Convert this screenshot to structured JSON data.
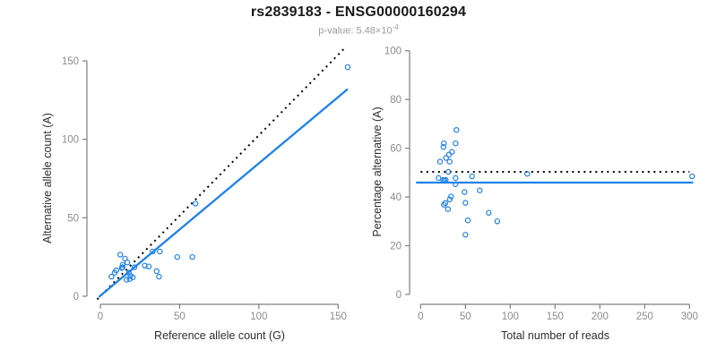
{
  "title": "rs2839183 - ENSG00000160294",
  "subtitle": {
    "text": "p-value: 5.48×10",
    "exponent": "-4"
  },
  "colors": {
    "point_blue": "#1e82e8",
    "line_blue": "#1e82e8",
    "dotted_black": "#000000",
    "tick_text": "#8c8c8c",
    "axis_line": "#7f7f7f",
    "label_text": "#2e2e2e",
    "title_text": "#1a1a1a",
    "subtitle_text": "#9b9b9b"
  },
  "chart_data": [
    {
      "type": "scatter",
      "name": "allele-counts",
      "xlabel": "Reference allele count (G)",
      "ylabel": "Alternative allele count (A)",
      "xlim": [
        0,
        157
      ],
      "ylim": [
        0,
        158
      ],
      "xticks": [
        0,
        50,
        100,
        150
      ],
      "yticks": [
        0,
        50,
        100,
        150
      ],
      "grid": false,
      "points": [
        [
          156,
          146
        ],
        [
          60,
          59
        ],
        [
          48.5,
          25
        ],
        [
          58,
          25
        ],
        [
          33,
          28.5
        ],
        [
          37.5,
          28.5
        ],
        [
          28,
          19.5
        ],
        [
          30.5,
          19
        ],
        [
          35.5,
          16
        ],
        [
          37,
          12.5
        ],
        [
          21.5,
          18.5
        ],
        [
          12.5,
          26.5
        ],
        [
          15.5,
          24
        ],
        [
          17,
          21.5
        ],
        [
          14,
          20
        ],
        [
          14,
          18.5
        ],
        [
          13.5,
          18
        ],
        [
          10,
          16.5
        ],
        [
          9,
          15
        ],
        [
          7,
          12.5
        ],
        [
          18,
          15
        ],
        [
          19,
          13
        ],
        [
          20.5,
          12
        ],
        [
          18.5,
          11
        ],
        [
          16.5,
          10.5
        ]
      ],
      "lines": [
        {
          "name": "identity-line",
          "style": "dotted",
          "color": "dotted_black",
          "from": [
            -2,
            -2
          ],
          "to": [
            154,
            158
          ]
        },
        {
          "name": "fit-line",
          "style": "solid",
          "color": "line_blue",
          "from": [
            -1,
            -0.5
          ],
          "to": [
            156,
            132
          ]
        }
      ]
    },
    {
      "type": "scatter",
      "name": "percentage-vs-reads",
      "xlabel": "Total number of reads",
      "ylabel": "Percentage alternative (A)",
      "xlim": [
        0,
        305
      ],
      "ylim": [
        0,
        100
      ],
      "xticks": [
        0,
        50,
        100,
        150,
        200,
        250,
        300
      ],
      "yticks": [
        0,
        20,
        40,
        60,
        80,
        100
      ],
      "grid": false,
      "points": [
        [
          40,
          67.5
        ],
        [
          39,
          62
        ],
        [
          26,
          62
        ],
        [
          25.5,
          60.5
        ],
        [
          35,
          58.5
        ],
        [
          31.7,
          57.4
        ],
        [
          28.4,
          56
        ],
        [
          21.7,
          54.5
        ],
        [
          32.4,
          54.5
        ],
        [
          31,
          50.3
        ],
        [
          119,
          49.5
        ],
        [
          303,
          48.5
        ],
        [
          20,
          47.8
        ],
        [
          25,
          47
        ],
        [
          26.5,
          46.9
        ],
        [
          28,
          47
        ],
        [
          39,
          47.8
        ],
        [
          57.4,
          48.5
        ],
        [
          39,
          45.2
        ],
        [
          66,
          42.7
        ],
        [
          49,
          42
        ],
        [
          34,
          40.2
        ],
        [
          32.5,
          39
        ],
        [
          50,
          37.6
        ],
        [
          27.5,
          37.5
        ],
        [
          26,
          36.8
        ],
        [
          30.5,
          35
        ],
        [
          76,
          33.5
        ],
        [
          52.7,
          30.4
        ],
        [
          85.5,
          30
        ],
        [
          50,
          24.5
        ]
      ],
      "lines": [
        {
          "name": "expected-50-line",
          "style": "dotted",
          "color": "dotted_black",
          "from": [
            0,
            50.3
          ],
          "to": [
            300,
            50.3
          ]
        },
        {
          "name": "mean-line",
          "style": "solid",
          "color": "line_blue",
          "from": [
            -5,
            45.9
          ],
          "to": [
            304,
            45.9
          ]
        }
      ]
    }
  ]
}
